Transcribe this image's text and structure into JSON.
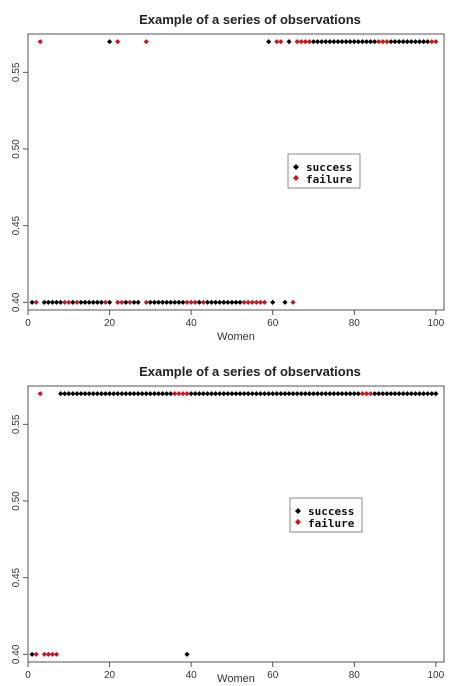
{
  "chart_data": [
    {
      "type": "scatter",
      "title": "Example of a series of observations",
      "xlabel": "Women",
      "ylabel": "",
      "xlim": [
        0,
        102
      ],
      "ylim": [
        0.395,
        0.575
      ],
      "xticks": [
        "0",
        "20",
        "40",
        "60",
        "80",
        "100"
      ],
      "yticks": [
        "0.40",
        "0.45",
        "0.50",
        "0.55"
      ],
      "legend": {
        "position": "right",
        "entries": [
          "success",
          "failure"
        ]
      },
      "colors": {
        "success": "#000000",
        "failure": "#c8161d"
      },
      "series": [
        {
          "name": "success",
          "x": [
            1,
            4,
            5,
            6,
            7,
            8,
            11,
            13,
            14,
            15,
            16,
            17,
            18,
            20,
            24,
            26,
            27,
            30,
            31,
            32,
            33,
            34,
            35,
            36,
            37,
            38,
            42,
            44,
            45,
            46,
            47,
            48,
            49,
            50,
            51,
            52,
            60,
            63,
            20,
            59,
            64,
            70,
            71,
            72,
            73,
            74,
            75,
            76,
            77,
            78,
            79,
            80,
            81,
            82,
            83,
            84,
            85,
            89,
            90,
            91,
            92,
            93,
            94,
            95,
            96,
            97,
            98
          ],
          "y": [
            0.4,
            0.4,
            0.4,
            0.4,
            0.4,
            0.4,
            0.4,
            0.4,
            0.4,
            0.4,
            0.4,
            0.4,
            0.4,
            0.4,
            0.4,
            0.4,
            0.4,
            0.4,
            0.4,
            0.4,
            0.4,
            0.4,
            0.4,
            0.4,
            0.4,
            0.4,
            0.4,
            0.4,
            0.4,
            0.4,
            0.4,
            0.4,
            0.4,
            0.4,
            0.4,
            0.4,
            0.4,
            0.4,
            0.57,
            0.57,
            0.57,
            0.57,
            0.57,
            0.57,
            0.57,
            0.57,
            0.57,
            0.57,
            0.57,
            0.57,
            0.57,
            0.57,
            0.57,
            0.57,
            0.57,
            0.57,
            0.57,
            0.57,
            0.57,
            0.57,
            0.57,
            0.57,
            0.57,
            0.57,
            0.57,
            0.57,
            0.57
          ]
        },
        {
          "name": "failure",
          "x": [
            2,
            9,
            10,
            12,
            19,
            22,
            23,
            25,
            29,
            39,
            40,
            41,
            43,
            53,
            54,
            55,
            56,
            57,
            58,
            65,
            3,
            22,
            29,
            61,
            62,
            66,
            67,
            68,
            69,
            86,
            87,
            88,
            99,
            100
          ],
          "y": [
            0.4,
            0.4,
            0.4,
            0.4,
            0.4,
            0.4,
            0.4,
            0.4,
            0.4,
            0.4,
            0.4,
            0.4,
            0.4,
            0.4,
            0.4,
            0.4,
            0.4,
            0.4,
            0.4,
            0.4,
            0.57,
            0.57,
            0.57,
            0.57,
            0.57,
            0.57,
            0.57,
            0.57,
            0.57,
            0.57,
            0.57,
            0.57,
            0.57,
            0.57
          ]
        }
      ]
    },
    {
      "type": "scatter",
      "title": "Example of a series of observations",
      "xlabel": "Women",
      "ylabel": "",
      "xlim": [
        0,
        102
      ],
      "ylim": [
        0.395,
        0.575
      ],
      "xticks": [
        "0",
        "20",
        "40",
        "60",
        "80",
        "100"
      ],
      "yticks": [
        "0.40",
        "0.45",
        "0.50",
        "0.55"
      ],
      "legend": {
        "position": "right",
        "entries": [
          "success",
          "failure"
        ]
      },
      "colors": {
        "success": "#000000",
        "failure": "#c8161d"
      },
      "series": [
        {
          "name": "success",
          "x": [
            1,
            39,
            8,
            9,
            10,
            11,
            12,
            13,
            14,
            15,
            16,
            17,
            18,
            19,
            20,
            21,
            22,
            23,
            24,
            25,
            26,
            27,
            28,
            29,
            30,
            31,
            32,
            33,
            34,
            35,
            40,
            41,
            42,
            43,
            44,
            45,
            46,
            47,
            48,
            49,
            50,
            51,
            52,
            53,
            54,
            55,
            56,
            57,
            58,
            59,
            60,
            61,
            62,
            63,
            64,
            65,
            66,
            67,
            68,
            69,
            70,
            71,
            72,
            73,
            74,
            75,
            76,
            77,
            78,
            79,
            80,
            81,
            85,
            86,
            87,
            88,
            89,
            90,
            91,
            92,
            93,
            94,
            95,
            96,
            97,
            98,
            99,
            100
          ],
          "y": [
            0.4,
            0.4,
            0.57,
            0.57,
            0.57,
            0.57,
            0.57,
            0.57,
            0.57,
            0.57,
            0.57,
            0.57,
            0.57,
            0.57,
            0.57,
            0.57,
            0.57,
            0.57,
            0.57,
            0.57,
            0.57,
            0.57,
            0.57,
            0.57,
            0.57,
            0.57,
            0.57,
            0.57,
            0.57,
            0.57,
            0.57,
            0.57,
            0.57,
            0.57,
            0.57,
            0.57,
            0.57,
            0.57,
            0.57,
            0.57,
            0.57,
            0.57,
            0.57,
            0.57,
            0.57,
            0.57,
            0.57,
            0.57,
            0.57,
            0.57,
            0.57,
            0.57,
            0.57,
            0.57,
            0.57,
            0.57,
            0.57,
            0.57,
            0.57,
            0.57,
            0.57,
            0.57,
            0.57,
            0.57,
            0.57,
            0.57,
            0.57,
            0.57,
            0.57,
            0.57,
            0.57,
            0.57,
            0.57,
            0.57,
            0.57,
            0.57,
            0.57,
            0.57,
            0.57,
            0.57,
            0.57,
            0.57,
            0.57,
            0.57,
            0.57,
            0.57,
            0.57,
            0.57
          ]
        },
        {
          "name": "failure",
          "x": [
            2,
            4,
            5,
            6,
            7,
            3,
            36,
            37,
            38,
            39,
            82,
            83,
            84
          ],
          "y": [
            0.4,
            0.4,
            0.4,
            0.4,
            0.4,
            0.57,
            0.57,
            0.57,
            0.57,
            0.57,
            0.57,
            0.57,
            0.57
          ]
        }
      ]
    }
  ]
}
